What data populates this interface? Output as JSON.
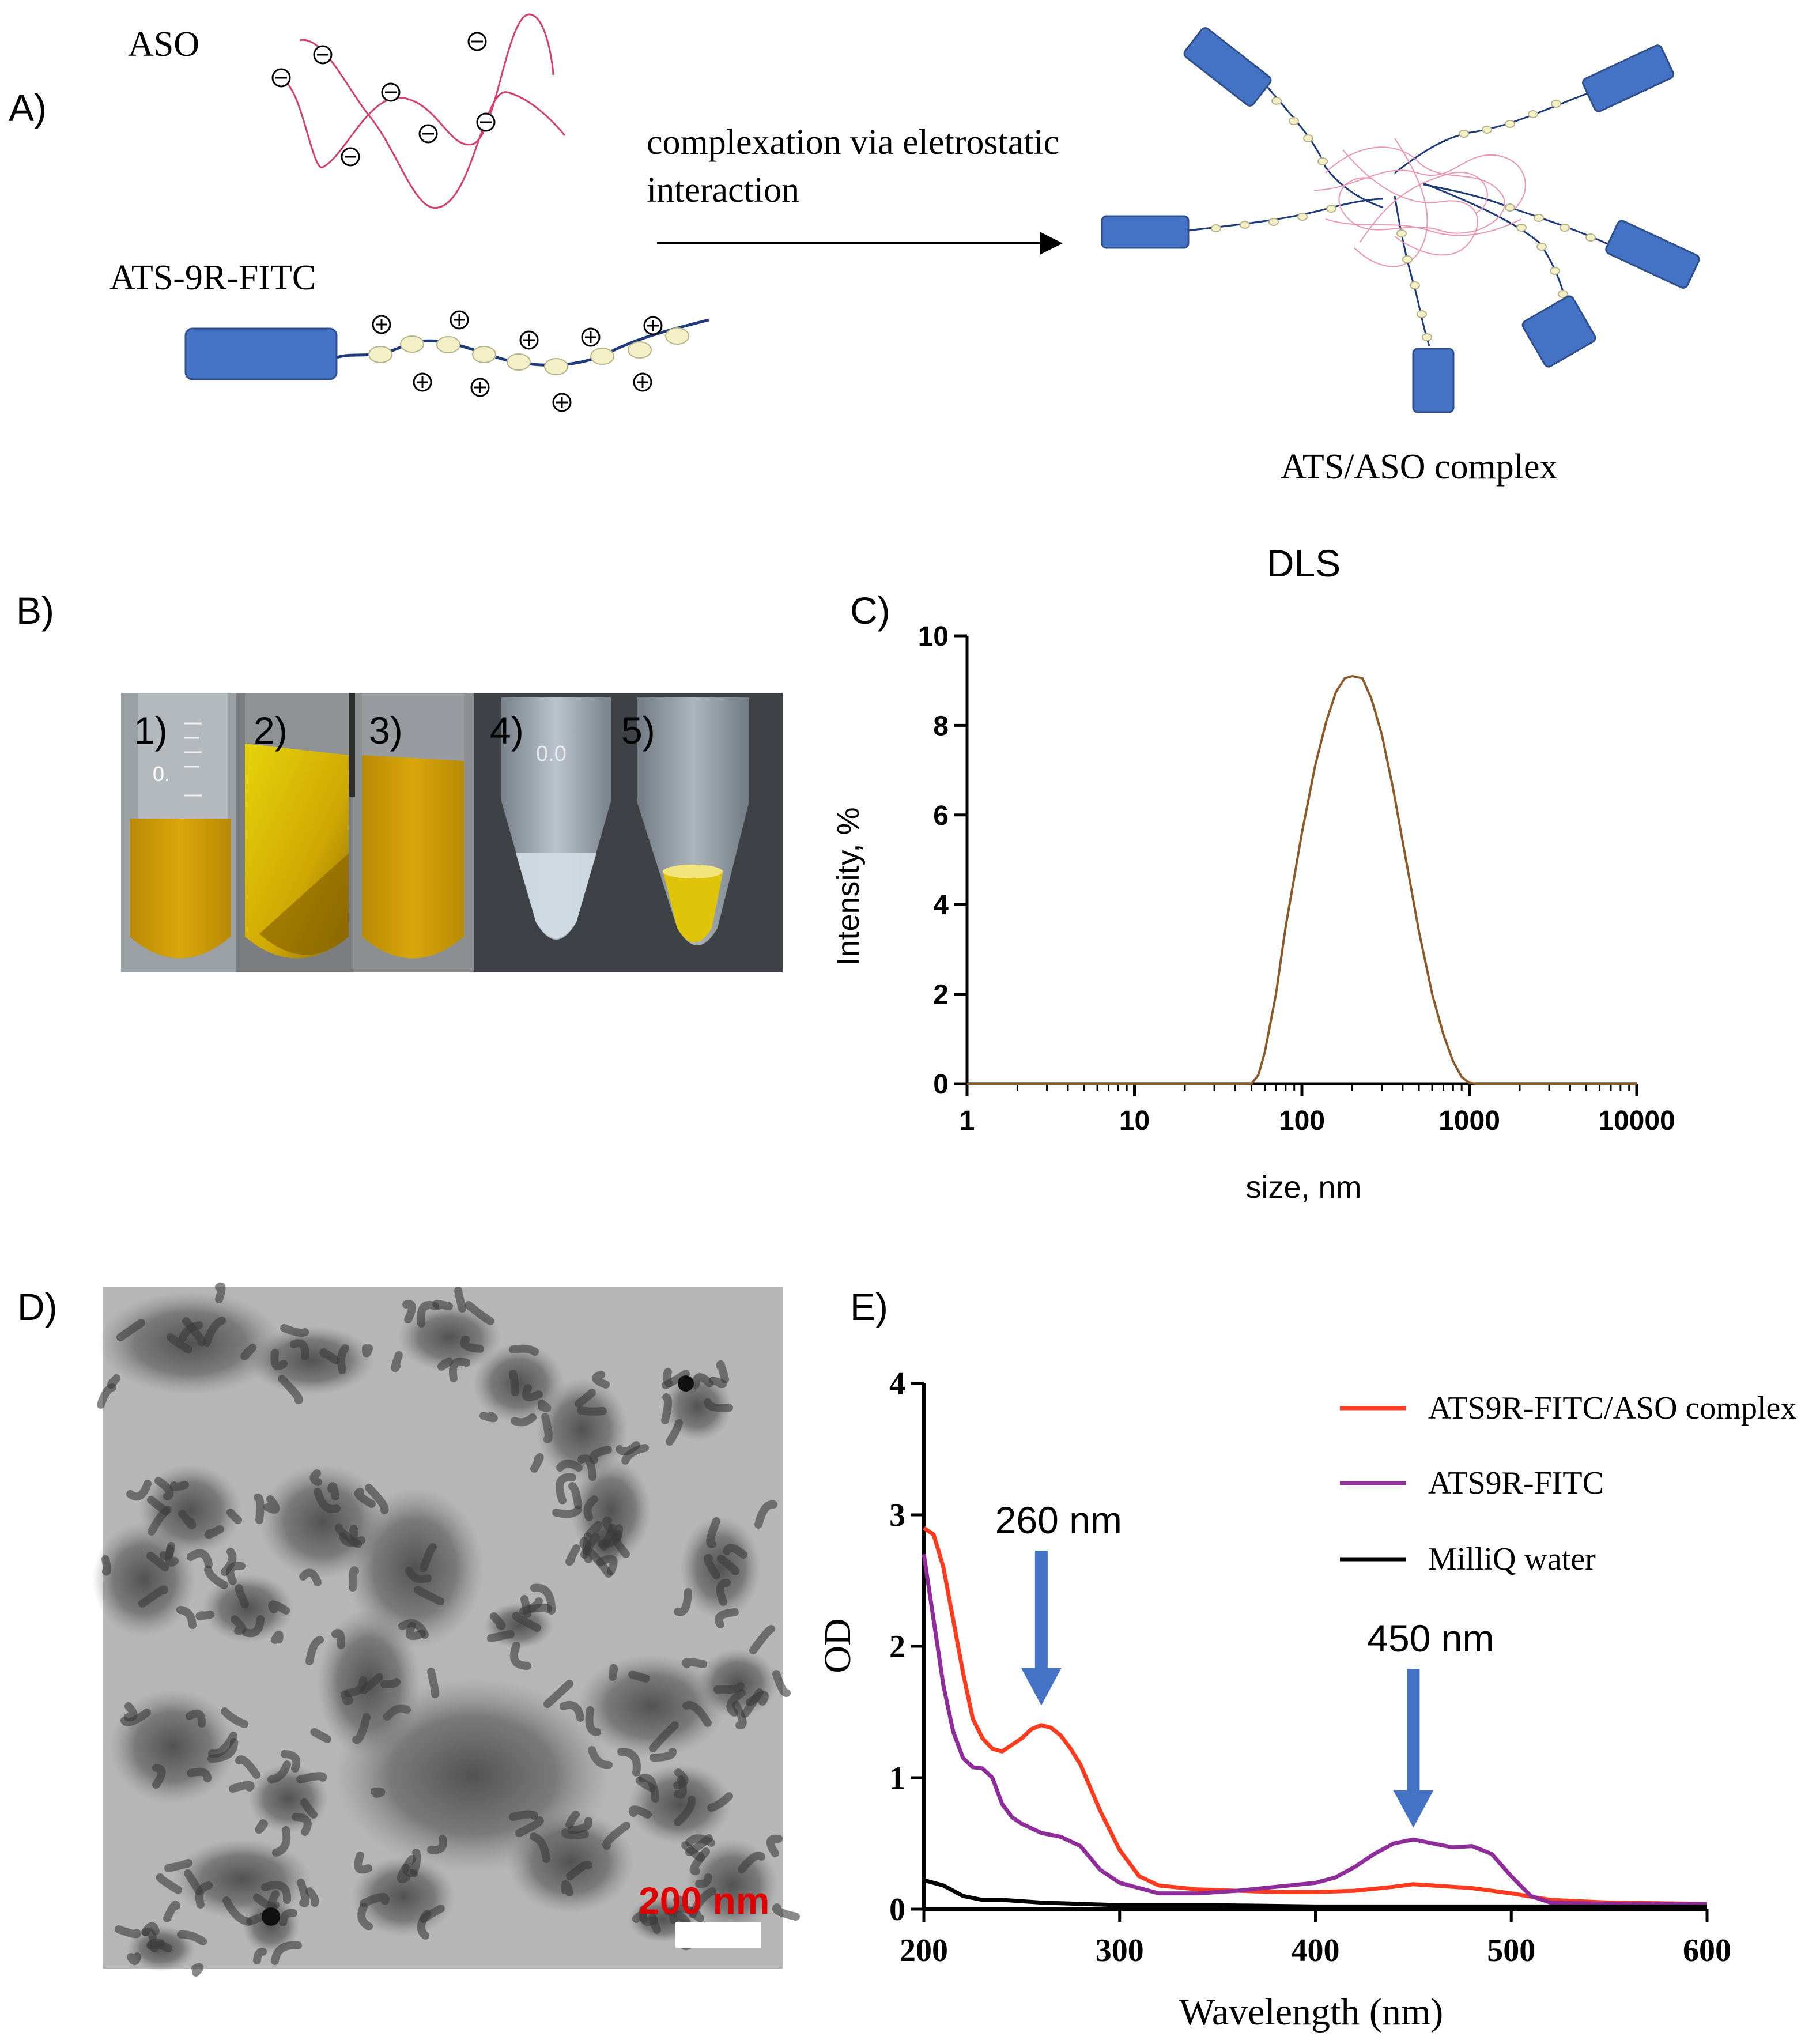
{
  "panels": {
    "a": "A)",
    "b": "B)",
    "c": "C)",
    "d": "D)",
    "e": "E)"
  },
  "panel_a": {
    "aso_label": "ASO",
    "peptide_label": "ATS-9R-FITC",
    "arrow_text_line1": "complexation via eletrostatic",
    "arrow_text_line2": "interaction",
    "complex_label": "ATS/ASO complex",
    "colors": {
      "aso": "#d4416e",
      "peptide_block": "#4472c4",
      "linker": "#1f3a7a",
      "bead": "#f3efc6"
    }
  },
  "panel_b": {
    "tubes": [
      "1)",
      "2)",
      "3)",
      "4)",
      "5)"
    ],
    "tube_etching_1": "0.",
    "tube_etching_4": "0.0"
  },
  "panel_d": {
    "scale_bar_label": "200 nm",
    "scale_bar_color": "#e00000"
  },
  "chart_data": [
    {
      "type": "line",
      "title": "DLS",
      "xlabel": "size, nm",
      "ylabel": "Intensity, %",
      "xscale": "log",
      "xlim": [
        1,
        10000
      ],
      "ylim": [
        0,
        10
      ],
      "x_ticks": [
        "1",
        "10",
        "100",
        "1000",
        "10000"
      ],
      "y_ticks": [
        "0",
        "2",
        "4",
        "6",
        "8",
        "10"
      ],
      "grid": false,
      "series": [
        {
          "color": "#8b5a2b",
          "x": [
            1,
            50,
            55,
            60,
            70,
            80,
            100,
            120,
            140,
            160,
            180,
            200,
            230,
            260,
            300,
            350,
            400,
            500,
            600,
            700,
            800,
            900,
            1000,
            1100,
            10000
          ],
          "y": [
            0,
            0,
            0.2,
            0.7,
            2.0,
            3.5,
            5.6,
            7.1,
            8.1,
            8.75,
            9.05,
            9.1,
            9.05,
            8.6,
            7.8,
            6.6,
            5.4,
            3.4,
            2.0,
            1.1,
            0.5,
            0.15,
            0.02,
            0,
            0
          ]
        }
      ]
    },
    {
      "type": "line",
      "xlabel": "Wavelength (nm)",
      "ylabel": "OD",
      "xlim": [
        200,
        600
      ],
      "ylim": [
        0,
        4
      ],
      "x_ticks": [
        "200",
        "300",
        "400",
        "500",
        "600"
      ],
      "y_ticks": [
        "0",
        "1",
        "2",
        "3",
        "4"
      ],
      "legend": "top-right",
      "grid": false,
      "annotations": [
        {
          "text": "260 nm",
          "x": 260,
          "y_arrow_tip": 1.55
        },
        {
          "text": "450 nm",
          "x": 450,
          "y_arrow_tip": 0.62
        }
      ],
      "arrow_color": "#4472c4",
      "series": [
        {
          "name": "ATS9R-FITC/ASO complex",
          "color": "#ff3b1f",
          "x": [
            200,
            205,
            210,
            215,
            220,
            225,
            230,
            235,
            240,
            245,
            250,
            255,
            260,
            265,
            270,
            275,
            280,
            290,
            300,
            310,
            320,
            340,
            360,
            380,
            400,
            420,
            440,
            450,
            460,
            480,
            500,
            520,
            550,
            600
          ],
          "y": [
            2.9,
            2.85,
            2.6,
            2.2,
            1.8,
            1.45,
            1.3,
            1.22,
            1.2,
            1.25,
            1.3,
            1.37,
            1.4,
            1.38,
            1.32,
            1.22,
            1.1,
            0.75,
            0.45,
            0.25,
            0.18,
            0.15,
            0.14,
            0.13,
            0.13,
            0.14,
            0.17,
            0.19,
            0.18,
            0.16,
            0.12,
            0.07,
            0.05,
            0.04
          ]
        },
        {
          "name": "ATS9R-FITC",
          "color": "#8e2c9a",
          "x": [
            200,
            205,
            210,
            215,
            220,
            225,
            230,
            235,
            240,
            245,
            250,
            260,
            270,
            280,
            290,
            300,
            320,
            340,
            360,
            380,
            400,
            410,
            420,
            430,
            440,
            450,
            460,
            470,
            480,
            490,
            500,
            510,
            520,
            550,
            600
          ],
          "y": [
            2.7,
            2.2,
            1.7,
            1.35,
            1.15,
            1.08,
            1.07,
            1.0,
            0.8,
            0.7,
            0.65,
            0.58,
            0.55,
            0.48,
            0.3,
            0.2,
            0.12,
            0.12,
            0.14,
            0.17,
            0.2,
            0.24,
            0.32,
            0.42,
            0.5,
            0.53,
            0.5,
            0.47,
            0.48,
            0.42,
            0.25,
            0.1,
            0.05,
            0.04,
            0.04
          ]
        },
        {
          "name": "MilliQ water",
          "color": "#000000",
          "x": [
            200,
            210,
            220,
            230,
            240,
            250,
            260,
            280,
            300,
            350,
            400,
            500,
            600
          ],
          "y": [
            0.22,
            0.18,
            0.1,
            0.07,
            0.07,
            0.06,
            0.05,
            0.04,
            0.03,
            0.03,
            0.02,
            0.02,
            0.02
          ]
        }
      ]
    }
  ]
}
